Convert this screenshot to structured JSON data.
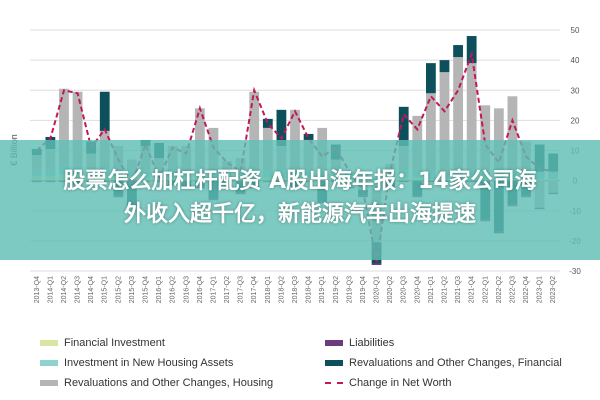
{
  "banner": {
    "line1": "股票怎么加杠杆配资 A股出海年报：14家公司海",
    "line2": "外收入超千亿，新能源汽车出海提速"
  },
  "chart_data": {
    "type": "bar",
    "stacked": true,
    "ylabel": "€ Billion",
    "ylim": [
      -30,
      50
    ],
    "yticks": [
      -30,
      -20,
      -10,
      0,
      10,
      20,
      30,
      40,
      50
    ],
    "grid": true,
    "legend_position": "bottom",
    "categories": [
      "2013-Q4",
      "2014-Q1",
      "2014-Q2",
      "2014-Q3",
      "2014-Q4",
      "2015-Q1",
      "2015-Q2",
      "2015-Q3",
      "2015-Q4",
      "2016-Q1",
      "2016-Q2",
      "2016-Q3",
      "2016-Q4",
      "2017-Q1",
      "2017-Q2",
      "2017-Q3",
      "2017-Q4",
      "2018-Q1",
      "2018-Q2",
      "2018-Q3",
      "2018-Q4",
      "2019-Q1",
      "2019-Q2",
      "2019-Q3",
      "2019-Q4",
      "2020-Q1",
      "2020-Q2",
      "2020-Q3",
      "2020-Q4",
      "2021-Q1",
      "2021-Q2",
      "2021-Q3",
      "2021-Q4",
      "2022-Q1",
      "2022-Q2",
      "2022-Q3",
      "2022-Q4",
      "2023-Q1",
      "2023-Q2"
    ],
    "series": [
      {
        "name": "Financial Investment",
        "color": "#d8e6a3",
        "values": [
          1.5,
          1.5,
          2,
          2,
          1.5,
          2,
          1.5,
          1.5,
          1,
          1,
          1,
          1,
          1.5,
          1,
          1,
          1,
          1,
          1,
          1,
          1,
          1,
          1,
          0.5,
          0.5,
          0.5,
          -0.5,
          0.5,
          1,
          1,
          0.5,
          0.5,
          0.5,
          0.5,
          0.5,
          0.5,
          0.5,
          0.5,
          0.5,
          0.5
        ]
      },
      {
        "name": "Investment in New Housing Assets",
        "color": "#8fd3cf",
        "values": [
          2,
          2,
          2.5,
          2.5,
          2.5,
          2.5,
          2,
          2.5,
          2.5,
          2.5,
          2.5,
          2.5,
          2.5,
          2.5,
          2.5,
          2.5,
          2.5,
          2.5,
          2.5,
          2.5,
          2.5,
          2.5,
          2.5,
          2.5,
          2,
          1,
          2,
          2.5,
          2.5,
          2.5,
          2.5,
          2.5,
          2.5,
          2.5,
          2.5,
          2.5,
          2.5,
          2.5,
          2.5
        ]
      },
      {
        "name": "Revaluations and Other Changes, Housing",
        "color": "#b5b5b5",
        "values": [
          5,
          7,
          26,
          25,
          5,
          12,
          8,
          3,
          8,
          4,
          8,
          8,
          20,
          14,
          3,
          4,
          26,
          14,
          8,
          20,
          10,
          14,
          4,
          -2,
          -3,
          -20,
          3,
          8,
          18,
          26,
          33,
          38,
          36,
          22,
          21,
          25,
          10,
          -9,
          -4
        ]
      },
      {
        "name": "Revaluations and Other Changes, Financial",
        "color": "#0e4f5c",
        "values": [
          2,
          4,
          0,
          -1,
          4,
          13,
          -5,
          -8,
          2,
          5,
          -1,
          -2,
          -2,
          -6,
          -2,
          -4,
          -2,
          3,
          12,
          -2,
          2,
          -7,
          5,
          0,
          -2,
          -7,
          -2,
          13,
          -5,
          10,
          4,
          4,
          9,
          -13,
          -17,
          -8,
          -5,
          9,
          6
        ]
      },
      {
        "name": "Liabilities",
        "color": "#6b3b7d",
        "values": [
          -0.5,
          -0.5,
          -0.5,
          -0.5,
          -0.5,
          -0.5,
          -0.5,
          -0.5,
          -0.5,
          -0.5,
          -0.5,
          -0.5,
          -0.5,
          -0.5,
          -0.5,
          -0.5,
          -0.5,
          -0.5,
          -0.5,
          -0.5,
          -0.5,
          -0.5,
          -0.5,
          -0.5,
          -0.5,
          -0.5,
          -0.5,
          -0.5,
          -0.5,
          -0.5,
          -0.5,
          -0.5,
          -0.5,
          -0.5,
          -0.5,
          -0.5,
          -0.5,
          -0.5,
          -0.5
        ]
      }
    ],
    "line": {
      "name": "Change in Net Worth",
      "color": "#c2185b",
      "values": [
        10,
        14,
        30,
        29,
        11,
        17,
        7,
        -1,
        12,
        1,
        11,
        9,
        24,
        11,
        6,
        3,
        30,
        19,
        14,
        23,
        14,
        8,
        11,
        3,
        -3,
        -27,
        3,
        22,
        17,
        28,
        23,
        30,
        42,
        12,
        6,
        20,
        8,
        4,
        3
      ]
    }
  },
  "legend": {
    "items": [
      {
        "label": "Financial Investment",
        "color": "#d8e6a3",
        "kind": "swatch"
      },
      {
        "label": "Investment in New Housing Assets",
        "color": "#8fd3cf",
        "kind": "swatch"
      },
      {
        "label": "Revaluations and Other Changes, Housing",
        "color": "#b5b5b5",
        "kind": "swatch"
      },
      {
        "label": "Liabilities",
        "color": "#6b3b7d",
        "kind": "swatch"
      },
      {
        "label": "Revaluations and Other Changes, Financial",
        "color": "#0e4f5c",
        "kind": "swatch"
      },
      {
        "label": "Change in Net Worth",
        "color": "#c2185b",
        "kind": "dashed-line"
      }
    ]
  }
}
